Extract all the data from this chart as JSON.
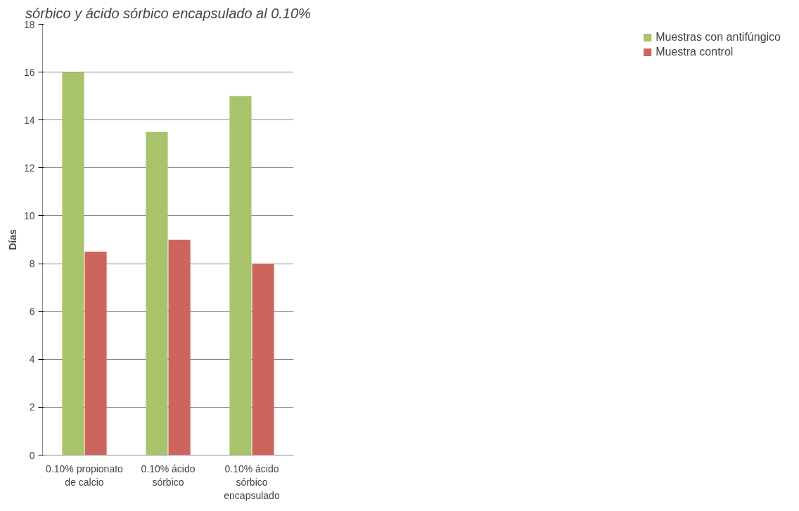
{
  "chart_data": {
    "type": "bar",
    "title": "sórbico y ácido sórbico encapsulado al 0.10%",
    "ylabel": "Días",
    "categories": [
      "0.10% propionato\nde calcio",
      "0.10% ácido\nsórbico",
      "0.10% ácido\nsórbico\nencapsulado"
    ],
    "series": [
      {
        "name": "Muestras con antifúngico",
        "color": "#a9c36a",
        "values": [
          16,
          13.5,
          15
        ]
      },
      {
        "name": "Muestra control",
        "color": "#cd655e",
        "values": [
          8.5,
          9,
          8
        ]
      }
    ],
    "ylim": [
      0,
      18
    ],
    "yticks": [
      0,
      2,
      4,
      6,
      8,
      10,
      12,
      14,
      16,
      18
    ],
    "grid": "y",
    "legend": "right"
  }
}
